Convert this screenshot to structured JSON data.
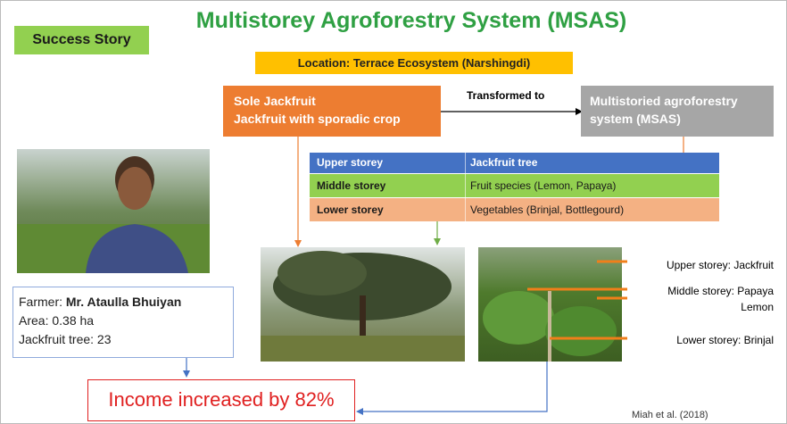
{
  "title": "Multistorey Agroforestry System (MSAS)",
  "badge": "Success Story",
  "location": "Location: Terrace Ecosystem (Narshingdi)",
  "from_box": [
    "Sole Jackfruit",
    "Jackfruit with sporadic crop"
  ],
  "transition": "Transformed to",
  "to_box": "Multistoried agroforestry system (MSAS)",
  "table": {
    "rows": [
      [
        "Upper storey",
        "Jackfruit tree"
      ],
      [
        "Middle storey",
        "Fruit species (Lemon, Papaya)"
      ],
      [
        "Lower storey",
        "Vegetables (Brinjal, Bottlegourd)"
      ]
    ]
  },
  "farmer": {
    "label": "Farmer:",
    "name": "Mr. Ataulla Bhuiyan",
    "area": "Area: 0.38 ha",
    "trees": "Jackfruit tree: 23"
  },
  "result": "Income increased by 82%",
  "storey_labels": [
    "Upper storey: Jackfruit",
    "Middle storey: Papaya",
    "Lemon",
    "Lower storey: Brinjal"
  ],
  "citation": "Miah et al. (2018)"
}
